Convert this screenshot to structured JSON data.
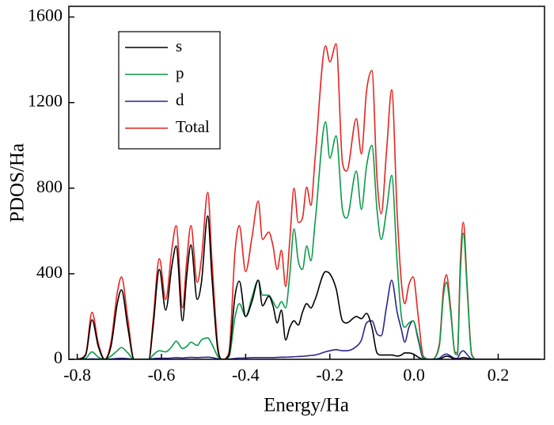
{
  "chart_data": {
    "type": "line",
    "xlabel": "Energy/Ha",
    "ylabel": "PDOS/Ha",
    "x": [
      -0.8,
      -0.78,
      -0.765,
      -0.75,
      -0.735,
      -0.72,
      -0.705,
      -0.695,
      -0.68,
      -0.665,
      -0.63,
      -0.62,
      -0.605,
      -0.59,
      -0.575,
      -0.565,
      -0.55,
      -0.54,
      -0.53,
      -0.515,
      -0.505,
      -0.49,
      -0.48,
      -0.465,
      -0.455,
      -0.44,
      -0.425,
      -0.415,
      -0.4,
      -0.385,
      -0.37,
      -0.36,
      -0.345,
      -0.335,
      -0.325,
      -0.315,
      -0.305,
      -0.295,
      -0.285,
      -0.275,
      -0.265,
      -0.255,
      -0.245,
      -0.235,
      -0.21,
      -0.2,
      -0.185,
      -0.17,
      -0.16,
      -0.137,
      -0.125,
      -0.113,
      -0.1,
      -0.088,
      -0.078,
      -0.065,
      -0.053,
      -0.04,
      -0.03,
      -0.022,
      -0.012,
      -0.002,
      0.01,
      0.022,
      0.04,
      0.06,
      0.07,
      0.077,
      0.087,
      0.097,
      0.103,
      0.11,
      0.117,
      0.127,
      0.137,
      0.15,
      0.3
    ],
    "series": [
      {
        "name": "s",
        "color": "#000000",
        "values": [
          0,
          20,
          185,
          60,
          0,
          60,
          260,
          325,
          150,
          0,
          0,
          150,
          420,
          230,
          440,
          530,
          180,
          390,
          535,
          280,
          360,
          670,
          380,
          30,
          0,
          20,
          300,
          365,
          200,
          270,
          370,
          250,
          295,
          250,
          170,
          230,
          90,
          150,
          180,
          160,
          220,
          260,
          240,
          280,
          410,
          400,
          330,
          180,
          170,
          200,
          190,
          215,
          150,
          30,
          20,
          20,
          20,
          15,
          20,
          30,
          30,
          25,
          10,
          0,
          0,
          0,
          10,
          15,
          10,
          0,
          0,
          5,
          8,
          5,
          0,
          0,
          0
        ]
      },
      {
        "name": "p",
        "color": "#0a9a48",
        "values": [
          0,
          5,
          35,
          10,
          0,
          15,
          40,
          55,
          30,
          0,
          0,
          20,
          40,
          35,
          60,
          85,
          50,
          60,
          80,
          65,
          90,
          100,
          70,
          10,
          0,
          10,
          200,
          260,
          200,
          290,
          370,
          300,
          300,
          270,
          240,
          270,
          240,
          400,
          610,
          460,
          420,
          530,
          460,
          640,
          1110,
          940,
          1045,
          700,
          660,
          880,
          700,
          900,
          1000,
          700,
          560,
          700,
          860,
          450,
          200,
          150,
          170,
          180,
          100,
          10,
          0,
          60,
          300,
          360,
          220,
          30,
          20,
          400,
          590,
          300,
          20,
          0,
          0
        ]
      },
      {
        "name": "d",
        "color": "#29248f",
        "values": [
          0,
          0,
          2,
          1,
          0,
          1,
          4,
          5,
          3,
          0,
          0,
          3,
          5,
          5,
          6,
          8,
          6,
          8,
          9,
          8,
          9,
          10,
          8,
          2,
          0,
          1,
          4,
          6,
          6,
          8,
          8,
          8,
          8,
          8,
          9,
          10,
          10,
          11,
          12,
          13,
          14,
          16,
          18,
          20,
          35,
          40,
          45,
          40,
          40,
          60,
          90,
          170,
          180,
          120,
          110,
          250,
          370,
          220,
          140,
          80,
          150,
          180,
          90,
          5,
          0,
          5,
          20,
          25,
          15,
          5,
          5,
          30,
          40,
          20,
          2,
          0,
          0
        ]
      },
      {
        "name": "Total",
        "color": "#e8231f",
        "values": [
          0,
          25,
          220,
          75,
          0,
          80,
          310,
          385,
          190,
          0,
          0,
          180,
          470,
          280,
          520,
          625,
          240,
          460,
          625,
          360,
          470,
          780,
          460,
          45,
          0,
          30,
          510,
          625,
          410,
          570,
          740,
          560,
          595,
          530,
          420,
          510,
          340,
          560,
          800,
          640,
          660,
          805,
          720,
          940,
          1465,
          1390,
          1475,
          920,
          880,
          1125,
          960,
          1250,
          1350,
          850,
          680,
          980,
          1260,
          680,
          360,
          260,
          350,
          385,
          200,
          15,
          0,
          70,
          330,
          395,
          240,
          35,
          30,
          450,
          640,
          320,
          25,
          0,
          0
        ]
      }
    ],
    "xlim": [
      -0.82,
      0.31
    ],
    "ylim": [
      0,
      1650
    ],
    "xticks": [
      -0.8,
      -0.6,
      -0.4,
      -0.2,
      {
        "value": 0,
        "label": "0.0"
      },
      0.2
    ],
    "yticks": [
      0,
      400,
      800,
      1200,
      1600
    ],
    "legend": "upper left"
  }
}
